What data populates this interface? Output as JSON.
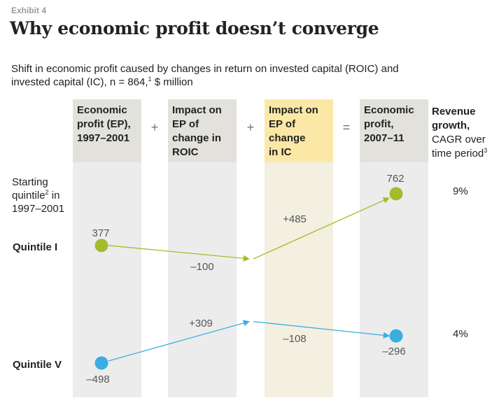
{
  "exhibit": "Exhibit 4",
  "title": "Why economic profit doesn’t converge",
  "subtitle": {
    "line1": "Shift in economic profit caused by changes in return on invested capital (ROIC) and",
    "line2_pre": "invested capital (IC), n = 864,",
    "line2_sup": "1",
    "line2_post": " $ million"
  },
  "columns": [
    {
      "lines": [
        "Economic",
        "profit (EP),",
        "1997–2001"
      ]
    },
    {
      "lines": [
        "Impact on",
        "EP of",
        "change in",
        "ROIC"
      ]
    },
    {
      "lines": [
        "Impact on",
        "EP of",
        "change",
        "in IC"
      ]
    },
    {
      "lines": [
        "Economic",
        "profit,",
        "2007–11"
      ]
    }
  ],
  "operators": [
    "+",
    "+",
    "="
  ],
  "revenue_header": {
    "line1": "Revenue",
    "line2": "growth,",
    "line3": "CAGR over",
    "line4_pre": "time period",
    "line4_sup": "3"
  },
  "row_header": {
    "line1": "Starting",
    "line2_pre": "quintile",
    "line2_sup": "2",
    "line2_post": " in",
    "line3": "1997–2001"
  },
  "colors": {
    "quintile_1": "#a5bb2e",
    "quintile_5": "#3aaee0",
    "highlight_col": "#fbe8a6",
    "gray_col": "#e2e1db"
  },
  "chart_data": {
    "type": "waterfall-flow",
    "steps": [
      "Economic profit (EP), 1997–2001",
      "Impact on EP of change in ROIC",
      "Impact on EP of change in IC",
      "Economic profit, 2007–11"
    ],
    "series": [
      {
        "name": "Quintile I",
        "start": 377,
        "roic_change": -100,
        "ic_change": 485,
        "end": 762,
        "revenue_growth": "9%",
        "labels": {
          "start": "377",
          "roic_change": "–100",
          "ic_change": "+485",
          "end": "762"
        }
      },
      {
        "name": "Quintile V",
        "start": -498,
        "roic_change": 309,
        "ic_change": -108,
        "end": -296,
        "revenue_growth": "4%",
        "labels": {
          "start": "–498",
          "roic_change": "+309",
          "ic_change": "–108",
          "end": "–296"
        }
      }
    ]
  }
}
